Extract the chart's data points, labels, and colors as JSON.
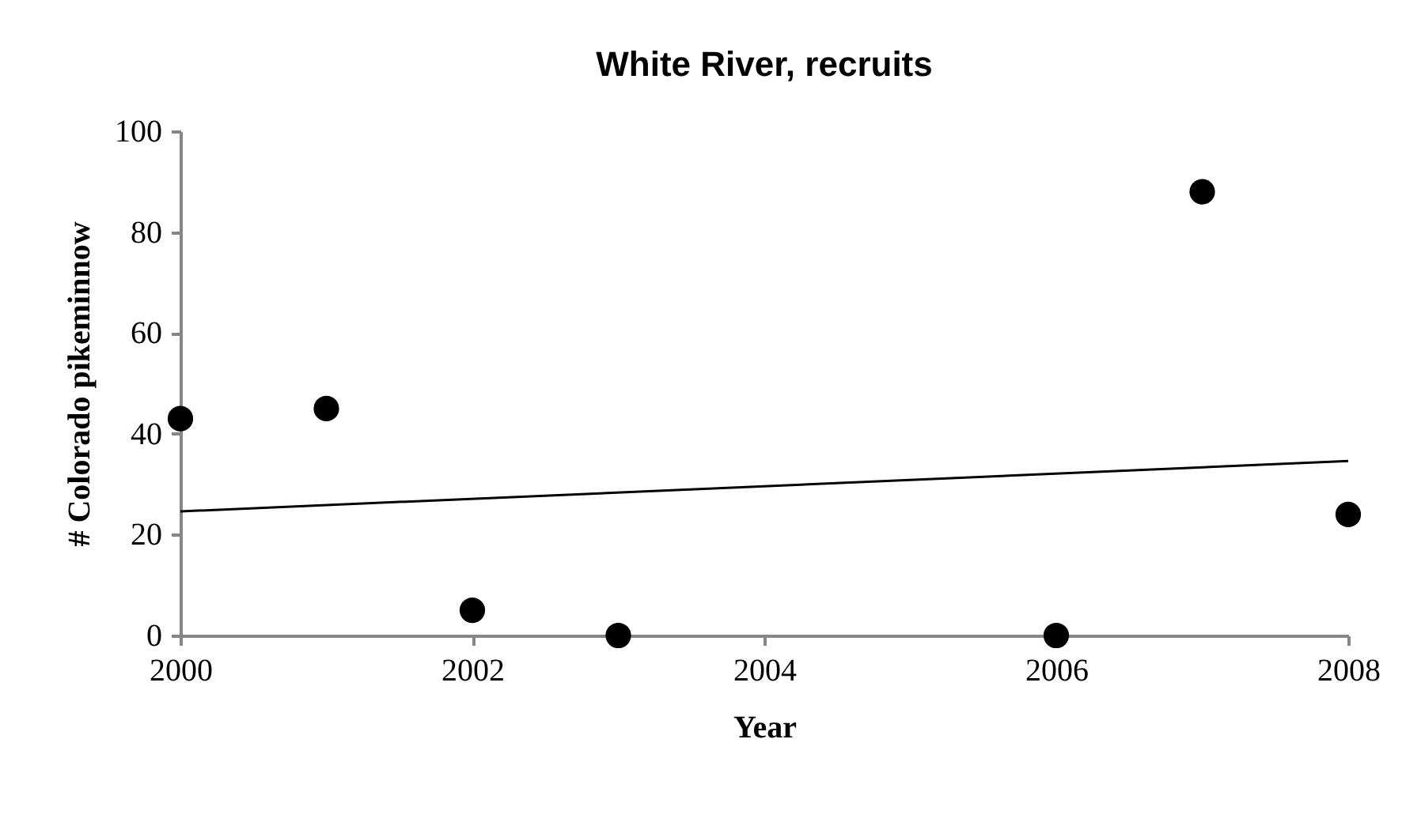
{
  "chart_data": {
    "type": "scatter",
    "title": "White River, recruits",
    "xlabel": "Year",
    "ylabel": "# Colorado pikeminnow",
    "x": [
      2000,
      2001,
      2002,
      2003,
      2006,
      2007,
      2008
    ],
    "series": [
      {
        "color": "#000000",
        "values": [
          43,
          45,
          5,
          0,
          0,
          88,
          24
        ]
      },
      {
        "type": "line",
        "color": "#000000",
        "marker": "none",
        "x": [
          2000,
          2008
        ],
        "values": [
          24.6,
          34.6
        ]
      }
    ],
    "xlim": [
      2000,
      2008
    ],
    "xticks": [
      2000,
      2002,
      2004,
      2006,
      2008
    ],
    "ylim": [
      0,
      100
    ],
    "yticks": [
      0,
      20,
      40,
      60,
      80,
      100
    ],
    "grid": false,
    "marker": "circle"
  }
}
